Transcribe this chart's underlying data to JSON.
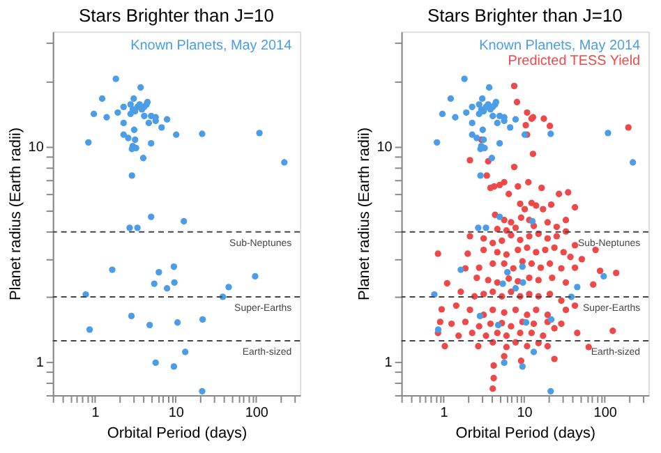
{
  "chart_data": [
    {
      "type": "scatter",
      "title": "Stars Brighter than J=10",
      "xlabel": "Orbital Period (days)",
      "ylabel": "Planet radius (Earth radii)",
      "log": "xy",
      "grid": false,
      "legend": "top right",
      "marker": "circle",
      "xlim": [
        0.3,
        350
      ],
      "ylim": [
        0.7,
        34
      ],
      "xticks": [
        {
          "value": 0.3,
          "label": null
        },
        {
          "value": 0.4,
          "label": null
        },
        {
          "value": 0.5,
          "label": null
        },
        {
          "value": 0.6,
          "label": null
        },
        {
          "value": 0.7,
          "label": null
        },
        {
          "value": 0.8,
          "label": null
        },
        {
          "value": 0.9,
          "label": null
        },
        1,
        {
          "value": 2,
          "label": null
        },
        {
          "value": 3,
          "label": null
        },
        {
          "value": 4,
          "label": null
        },
        {
          "value": 5,
          "label": null
        },
        {
          "value": 6,
          "label": null
        },
        {
          "value": 7,
          "label": null
        },
        {
          "value": 8,
          "label": null
        },
        {
          "value": 9,
          "label": null
        },
        10,
        {
          "value": 20,
          "label": null
        },
        {
          "value": 30,
          "label": null
        },
        {
          "value": 40,
          "label": null
        },
        {
          "value": 50,
          "label": null
        },
        {
          "value": 60,
          "label": null
        },
        {
          "value": 70,
          "label": null
        },
        {
          "value": 80,
          "label": null
        },
        {
          "value": 90,
          "label": null
        },
        100,
        {
          "value": 200,
          "label": null
        },
        {
          "value": 300,
          "label": null
        }
      ],
      "yticks": [
        {
          "value": 0.7,
          "label": null
        },
        {
          "value": 0.8,
          "label": null
        },
        {
          "value": 0.9,
          "label": null
        },
        1,
        {
          "value": 2,
          "label": null
        },
        {
          "value": 3,
          "label": null
        },
        {
          "value": 4,
          "label": null
        },
        {
          "value": 5,
          "label": null
        },
        {
          "value": 6,
          "label": null
        },
        {
          "value": 7,
          "label": null
        },
        {
          "value": 8,
          "label": null
        },
        {
          "value": 9,
          "label": null
        },
        10,
        {
          "value": 20,
          "label": null
        },
        {
          "value": 30,
          "label": null
        }
      ],
      "ref_lines": [
        {
          "axis": "y",
          "value": 4,
          "label": "Sub-Neptunes",
          "line_style": "dashed",
          "color": "#444444"
        },
        {
          "axis": "y",
          "value": 2,
          "label": "Super-Earths",
          "line_style": "dashed",
          "color": "#444444"
        },
        {
          "axis": "y",
          "value": 1.25,
          "label": "Earth-sized",
          "line_style": "dashed",
          "color": "#444444"
        }
      ],
      "series": [
        {
          "name": "Known Planets, May 2014",
          "color": "#4a9de6",
          "x": [
            1.82,
            1.23,
            0.97,
            1.4,
            1.92,
            2.27,
            2.27,
            2.27,
            2.59,
            3.03,
            2.77,
            2.95,
            2.77,
            3.15,
            3.37,
            3.69,
            3.59,
            3.83,
            4.09,
            4.37,
            4.09,
            4.49,
            4.66,
            4.98,
            5.67,
            6.72,
            7.85,
            5.67,
            3.07,
            3.15,
            2.95,
            2.88,
            3.24,
            3.98,
            4.98,
            2.88,
            0.83,
            10.2,
            21.4,
            110,
            224,
            4.98,
            12.7,
            2.7,
            3.37,
            1.64,
            6.21,
            5.45,
            9.55,
            9.68,
            7.85,
            0.77,
            38.6,
            45.7,
            97.3,
            2.84,
            4.78,
            0.86,
            10.6,
            21.7,
            13.2,
            5.67,
            9.55,
            21.4
          ],
          "values": [
            20.5,
            16.6,
            14.1,
            13.6,
            14.3,
            15.2,
            12.8,
            11.3,
            10.9,
            16.6,
            15.6,
            14.8,
            14.1,
            14.5,
            15.2,
            18.7,
            15.6,
            14.8,
            15.2,
            15.6,
            13.8,
            16.0,
            12.8,
            13.8,
            13.1,
            12.2,
            13.3,
            13.6,
            11.9,
            10.7,
            10,
            9.7,
            9.8,
            8.8,
            10.3,
            7.3,
            10.4,
            11.3,
            11.4,
            11.5,
            8.4,
            4.7,
            4.48,
            4.18,
            4.18,
            2.67,
            2.6,
            2.3,
            2.76,
            2.33,
            2.19,
            2.05,
            2.0,
            2.22,
            2.49,
            1.63,
            1.48,
            1.41,
            1.52,
            1.57,
            1.11,
            0.99,
            0.95,
            0.73
          ]
        }
      ]
    },
    {
      "type": "scatter",
      "title": "Stars Brighter than J=10",
      "xlabel": "Orbital Period (days)",
      "ylabel": "Planet radius (Earth radii)",
      "log": "xy",
      "grid": false,
      "legend": "top right",
      "marker": "circle",
      "xlim": [
        0.3,
        350
      ],
      "ylim": [
        0.7,
        34
      ],
      "xticks": [
        {
          "value": 0.3,
          "label": null
        },
        {
          "value": 0.4,
          "label": null
        },
        {
          "value": 0.5,
          "label": null
        },
        {
          "value": 0.6,
          "label": null
        },
        {
          "value": 0.7,
          "label": null
        },
        {
          "value": 0.8,
          "label": null
        },
        {
          "value": 0.9,
          "label": null
        },
        1,
        {
          "value": 2,
          "label": null
        },
        {
          "value": 3,
          "label": null
        },
        {
          "value": 4,
          "label": null
        },
        {
          "value": 5,
          "label": null
        },
        {
          "value": 6,
          "label": null
        },
        {
          "value": 7,
          "label": null
        },
        {
          "value": 8,
          "label": null
        },
        {
          "value": 9,
          "label": null
        },
        10,
        {
          "value": 20,
          "label": null
        },
        {
          "value": 30,
          "label": null
        },
        {
          "value": 40,
          "label": null
        },
        {
          "value": 50,
          "label": null
        },
        {
          "value": 60,
          "label": null
        },
        {
          "value": 70,
          "label": null
        },
        {
          "value": 80,
          "label": null
        },
        {
          "value": 90,
          "label": null
        },
        100,
        {
          "value": 200,
          "label": null
        },
        {
          "value": 300,
          "label": null
        }
      ],
      "yticks": [
        {
          "value": 0.7,
          "label": null
        },
        {
          "value": 0.8,
          "label": null
        },
        {
          "value": 0.9,
          "label": null
        },
        1,
        {
          "value": 2,
          "label": null
        },
        {
          "value": 3,
          "label": null
        },
        {
          "value": 4,
          "label": null
        },
        {
          "value": 5,
          "label": null
        },
        {
          "value": 6,
          "label": null
        },
        {
          "value": 7,
          "label": null
        },
        {
          "value": 8,
          "label": null
        },
        {
          "value": 9,
          "label": null
        },
        10,
        {
          "value": 20,
          "label": null
        },
        {
          "value": 30,
          "label": null
        }
      ],
      "ref_lines": [
        {
          "axis": "y",
          "value": 4,
          "label": "Sub-Neptunes",
          "line_style": "dashed",
          "color": "#444444"
        },
        {
          "axis": "y",
          "value": 2,
          "label": "Super-Earths",
          "line_style": "dashed",
          "color": "#444444"
        },
        {
          "axis": "y",
          "value": 1.25,
          "label": "Earth-sized",
          "line_style": "dashed",
          "color": "#444444"
        }
      ],
      "series": [
        {
          "name": "Known Planets, May 2014",
          "color": "#4a9de6",
          "x": [
            1.82,
            1.23,
            0.97,
            1.4,
            1.92,
            2.27,
            2.27,
            2.27,
            2.59,
            3.03,
            2.77,
            2.95,
            2.77,
            3.15,
            3.37,
            3.69,
            3.59,
            3.83,
            4.09,
            4.37,
            4.09,
            4.49,
            4.66,
            4.98,
            5.67,
            6.72,
            7.85,
            5.67,
            3.07,
            3.15,
            2.95,
            2.88,
            3.24,
            3.98,
            4.98,
            2.88,
            0.83,
            10.2,
            21.4,
            110,
            224,
            4.98,
            12.7,
            2.7,
            3.37,
            1.64,
            6.21,
            5.45,
            9.55,
            9.68,
            7.85,
            0.77,
            38.6,
            45.7,
            97.3,
            2.84,
            4.78,
            0.86,
            10.6,
            21.7,
            13.2,
            5.67,
            9.55,
            21.4
          ],
          "values": [
            20.5,
            16.6,
            14.1,
            13.6,
            14.3,
            15.2,
            12.8,
            11.3,
            10.9,
            16.6,
            15.6,
            14.8,
            14.1,
            14.5,
            15.2,
            18.7,
            15.6,
            14.8,
            15.2,
            15.6,
            13.8,
            16.0,
            12.8,
            13.8,
            13.1,
            12.2,
            13.3,
            13.6,
            11.9,
            10.7,
            10,
            9.7,
            9.8,
            8.8,
            10.3,
            7.3,
            10.4,
            11.3,
            11.4,
            11.5,
            8.4,
            4.7,
            4.48,
            4.18,
            4.18,
            2.67,
            2.6,
            2.3,
            2.76,
            2.33,
            2.19,
            2.05,
            2.0,
            2.22,
            2.49,
            1.63,
            1.48,
            1.41,
            1.52,
            1.57,
            1.11,
            0.99,
            0.95,
            0.73
          ]
        },
        {
          "name": "Predicted TESS Yield",
          "color": "#ee4848",
          "x": [
            7.55,
            8.17,
            10.9,
            10.5,
            12.4,
            12.9,
            17.6,
            20.9,
            10.9,
            12.9,
            2.95,
            2.13,
            3.59,
            7.55,
            197,
            3.45,
            3.83,
            4.26,
            4.98,
            5.67,
            6.46,
            8.39,
            11.3,
            16.5,
            27.1,
            35.2,
            42.8,
            8.95,
            10.2,
            12.4,
            14.1,
            17.2,
            21.7,
            9.19,
            11.6,
            4.37,
            5.67,
            6.9,
            4.66,
            6.05,
            7.85,
            13.2,
            19.6,
            25.4,
            33.0,
            2.13,
            3.15,
            4.09,
            5.31,
            6.9,
            8.95,
            11.6,
            15.1,
            19.6,
            25.4,
            33.0,
            42.8,
            77.1,
            0.855,
            2.0,
            3.15,
            4.66,
            6.05,
            8.39,
            10.9,
            14.1,
            18.3,
            23.8,
            30.9,
            37.6,
            52.1,
            87.7,
            1.11,
            1.87,
            2.77,
            4.09,
            5.67,
            7.36,
            9.55,
            12.4,
            16.1,
            20.9,
            29.0,
            42.8,
            72.1,
            139,
            2.59,
            3.59,
            4.66,
            6.46,
            8.39,
            11.6,
            15.1,
            22.3,
            33.0,
            1.64,
            2.43,
            3.15,
            4.09,
            5.31,
            6.9,
            8.95,
            11.6,
            15.1,
            20.9,
            29.0,
            42.8,
            0.95,
            1.44,
            2.13,
            3.15,
            4.09,
            5.67,
            7.85,
            10.9,
            14.1,
            19.6,
            33.0,
            0.91,
            1.26,
            1.87,
            2.77,
            3.83,
            5.31,
            6.9,
            9.55,
            13.2,
            19.6,
            29.0,
            1.04,
            1.54,
            2.27,
            3.37,
            4.66,
            6.05,
            8.95,
            12.4,
            17.2,
            0.855,
            2.7,
            4.09,
            6.05,
            7.85,
            10.9,
            15.1,
            19.6,
            63.4,
            126,
            4.2,
            5.67,
            9.19,
            23.8,
            4.2,
            4.09,
            23.8,
            45.7
          ],
          "values": [
            19.0,
            16.0,
            14.3,
            12.5,
            13.4,
            13.6,
            13.4,
            12.4,
            11.3,
            9.2,
            10.7,
            8.6,
            8.5,
            8.0,
            12.2,
            7.3,
            6.4,
            6.5,
            6.6,
            6.8,
            6.0,
            6.5,
            6.8,
            6.4,
            6.0,
            6.1,
            5.2,
            5.4,
            5.1,
            5.45,
            5.3,
            5.1,
            5.35,
            4.66,
            4.54,
            4.8,
            4.54,
            4.43,
            4.12,
            4.06,
            4.18,
            4.26,
            4.43,
            4.22,
            4.54,
            3.82,
            3.73,
            3.55,
            3.64,
            3.86,
            3.67,
            3.82,
            3.92,
            3.73,
            3.82,
            4.02,
            3.47,
            3.3,
            3.17,
            3.17,
            3.3,
            3.22,
            3.14,
            3.3,
            3.38,
            3.22,
            3.3,
            3.38,
            3.22,
            3.06,
            2.99,
            2.64,
            2.31,
            2.71,
            2.73,
            2.85,
            2.85,
            2.71,
            2.92,
            2.85,
            2.73,
            2.85,
            2.71,
            2.73,
            2.28,
            2.58,
            2.45,
            2.39,
            2.33,
            2.43,
            2.36,
            2.45,
            2.39,
            2.45,
            2.33,
            2.11,
            2.01,
            2.06,
            2.11,
            2.01,
            2.11,
            2.01,
            2.06,
            2.01,
            2.06,
            1.92,
            1.82,
            1.75,
            1.82,
            1.74,
            1.65,
            1.74,
            1.69,
            1.74,
            1.65,
            1.74,
            1.65,
            1.74,
            1.53,
            1.5,
            1.53,
            1.46,
            1.5,
            1.51,
            1.46,
            1.53,
            1.5,
            1.53,
            1.5,
            1.18,
            1.32,
            1.36,
            1.32,
            1.36,
            1.32,
            1.36,
            1.36,
            1.32,
            1.36,
            1.18,
            1.23,
            1.17,
            1.23,
            1.18,
            1.22,
            1.18,
            1.17,
            1.39,
            0.96,
            1.06,
            1.01,
            1.03,
            0.84,
            0.75,
            1.43,
            1.36
          ]
        }
      ]
    }
  ]
}
